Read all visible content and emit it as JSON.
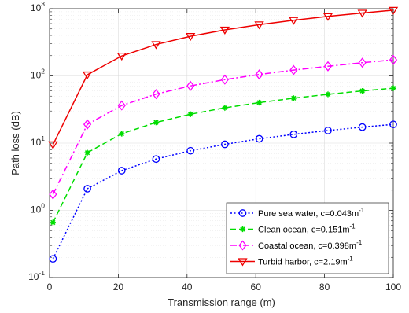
{
  "chart_data": {
    "type": "line",
    "title": "",
    "xlabel": "Transmission range (m)",
    "ylabel": "Path loss (dB)",
    "xlim": [
      0,
      100
    ],
    "ylim": [
      0.1,
      1000
    ],
    "yscale": "log",
    "grid": true,
    "legend_position": "bottom-right",
    "x_ticks": [
      0,
      20,
      40,
      60,
      80,
      100
    ],
    "y_ticks": [
      {
        "value": 0.1,
        "base": "10",
        "exp": "-1"
      },
      {
        "value": 1,
        "base": "10",
        "exp": "0"
      },
      {
        "value": 10,
        "base": "10",
        "exp": "1"
      },
      {
        "value": 100,
        "base": "10",
        "exp": "2"
      },
      {
        "value": 1000,
        "base": "10",
        "exp": "3"
      }
    ],
    "x": [
      1,
      11,
      21,
      31,
      41,
      51,
      61,
      71,
      81,
      91,
      100
    ],
    "series": [
      {
        "name": "Pure sea water, c=0.043m",
        "name_sup": "-1",
        "color": "#0000ff",
        "dash": "2,2.5",
        "marker": "circle",
        "values": [
          0.19,
          2.1,
          3.9,
          5.8,
          7.7,
          9.6,
          11.6,
          13.5,
          15.4,
          17.3,
          19.0
        ]
      },
      {
        "name": "Clean ocean, c=0.151m",
        "name_sup": "-1",
        "color": "#00dd00",
        "dash": "7,4",
        "marker": "asterisk",
        "values": [
          0.66,
          7.2,
          13.8,
          20.3,
          26.9,
          33.5,
          40.0,
          46.6,
          53.2,
          59.8,
          65.6
        ]
      },
      {
        "name": "Coastal ocean, c=0.398m",
        "name_sup": "-1",
        "color": "#ff00ff",
        "dash": "8,3,2,3",
        "marker": "diamond",
        "values": [
          1.73,
          19.0,
          36.3,
          53.6,
          71.0,
          88.0,
          105.0,
          122.0,
          139.0,
          157.0,
          173.0
        ]
      },
      {
        "name": "Turbid harbor, c=2.19m",
        "name_sup": "-1",
        "color": "#ee0000",
        "dash": "",
        "marker": "triangle-down",
        "values": [
          9.5,
          104,
          198,
          293,
          388,
          483,
          578,
          673,
          768,
          863,
          950
        ]
      }
    ]
  }
}
